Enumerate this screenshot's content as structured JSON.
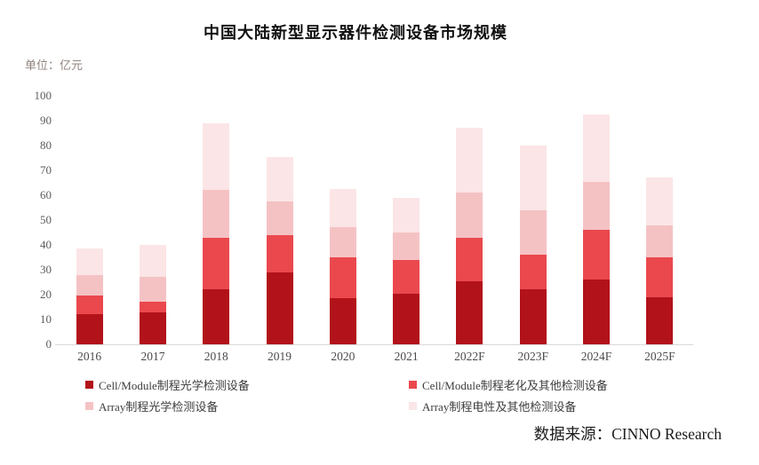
{
  "chart": {
    "title": "中国大陆新型显示器件检测设备市场规模",
    "unit_label": "单位：亿元",
    "source": "数据来源：CINNO Research"
  },
  "chart_data": {
    "type": "bar",
    "stacked": true,
    "title": "中国大陆新型显示器件检测设备市场规模",
    "unit": "亿元",
    "xlabel": "",
    "ylabel": "亿元",
    "ylim": [
      0,
      100
    ],
    "ytick_step": 10,
    "grid": false,
    "legend_position": "bottom",
    "source": "数据来源：CINNO Research",
    "categories": [
      "2016",
      "2017",
      "2018",
      "2019",
      "2020",
      "2021",
      "2022F",
      "2023F",
      "2024F",
      "2025F"
    ],
    "series": [
      {
        "name": "Cell/Module制程光学检测设备",
        "color": "#b2121a",
        "values": [
          12,
          13,
          22,
          29,
          18.5,
          20.5,
          25.5,
          22,
          26,
          19
        ]
      },
      {
        "name": "Cell/Module制程老化及其他检测设备",
        "color": "#ea484d",
        "values": [
          7.5,
          4,
          21,
          15,
          16.5,
          13.5,
          17.5,
          14,
          20,
          16
        ]
      },
      {
        "name": "Array制程光学检测设备",
        "color": "#f5c2c4",
        "values": [
          8.5,
          10,
          19,
          13.5,
          12,
          11,
          18,
          18,
          19.5,
          13
        ]
      },
      {
        "name": "Array制程电性及其他检测设备",
        "color": "#fbe5e6",
        "values": [
          10.5,
          13,
          27,
          18,
          15.5,
          14,
          26,
          26,
          27,
          19
        ]
      }
    ],
    "totals": [
      38.5,
      40,
      89,
      75.5,
      62.5,
      59,
      87,
      80,
      92.5,
      67
    ]
  }
}
